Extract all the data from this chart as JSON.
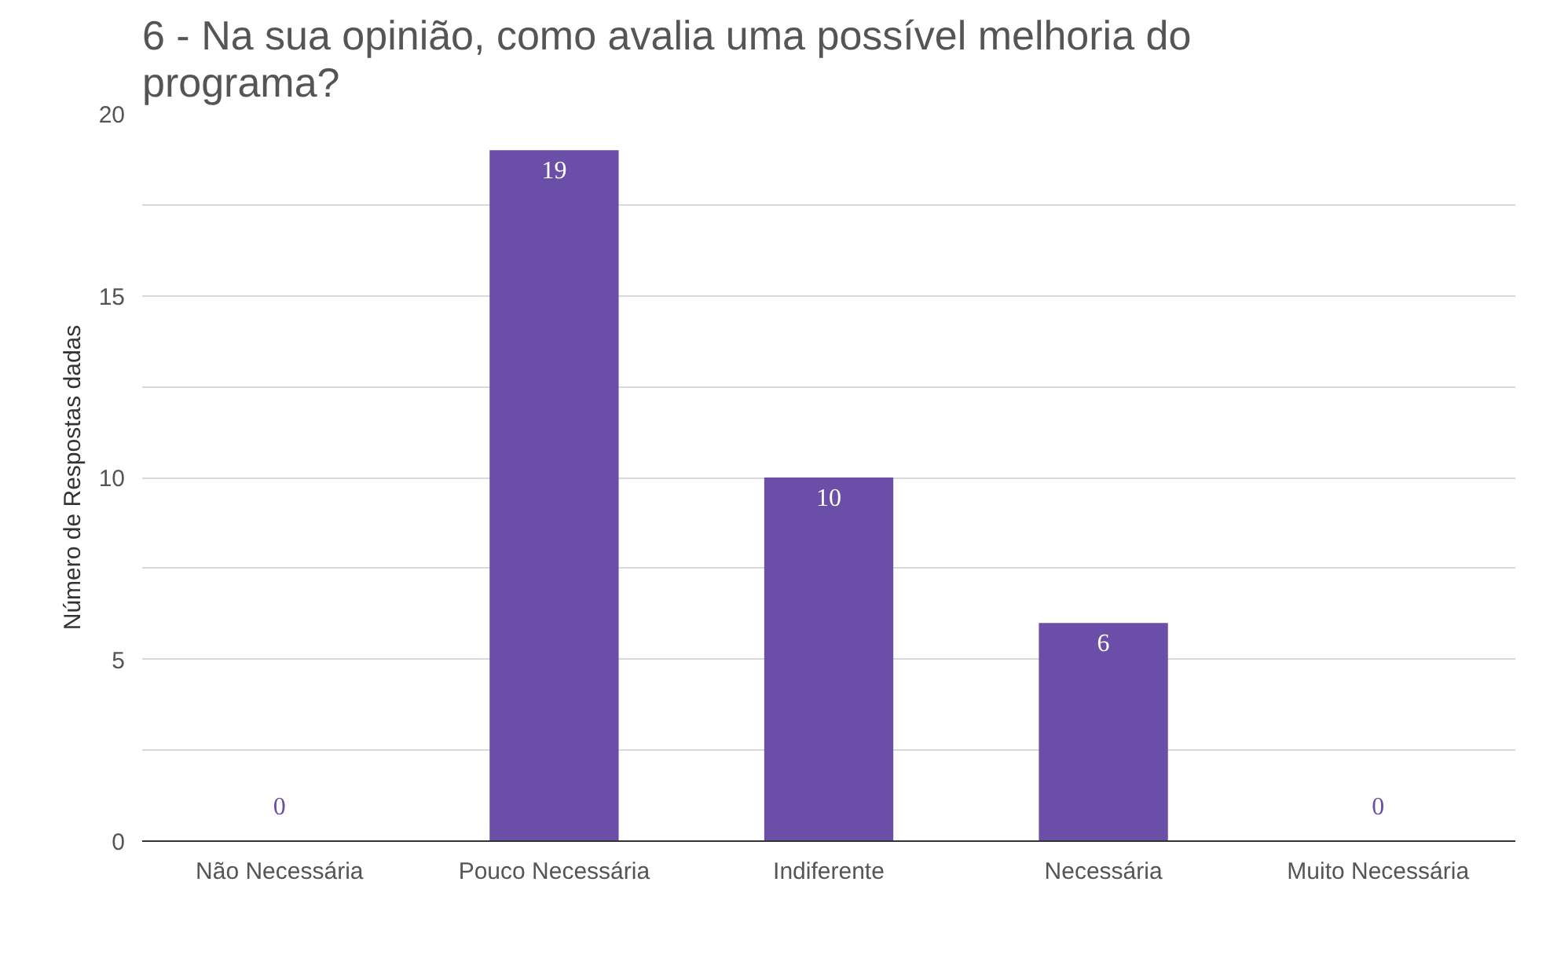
{
  "chart_data": {
    "type": "bar",
    "title": "6 - Na sua opinião, como avalia uma possível melhoria do programa?",
    "ylabel": "Número de Respostas dadas",
    "categories": [
      "Não Necessária",
      "Pouco Necessária",
      "Indiferente",
      "Necessária",
      "Muito Necessária"
    ],
    "values": [
      0,
      19,
      10,
      6,
      0
    ],
    "color": "#6a4ea7",
    "ylim": [
      0,
      20
    ],
    "yticks": [
      0,
      {
        "value": 2.5,
        "label": null
      },
      5,
      {
        "value": 7.5,
        "label": null
      },
      10,
      {
        "value": 12.5,
        "label": null
      },
      15,
      {
        "value": 17.5,
        "label": null
      },
      20
    ],
    "grid": "y",
    "data_labels": true
  }
}
